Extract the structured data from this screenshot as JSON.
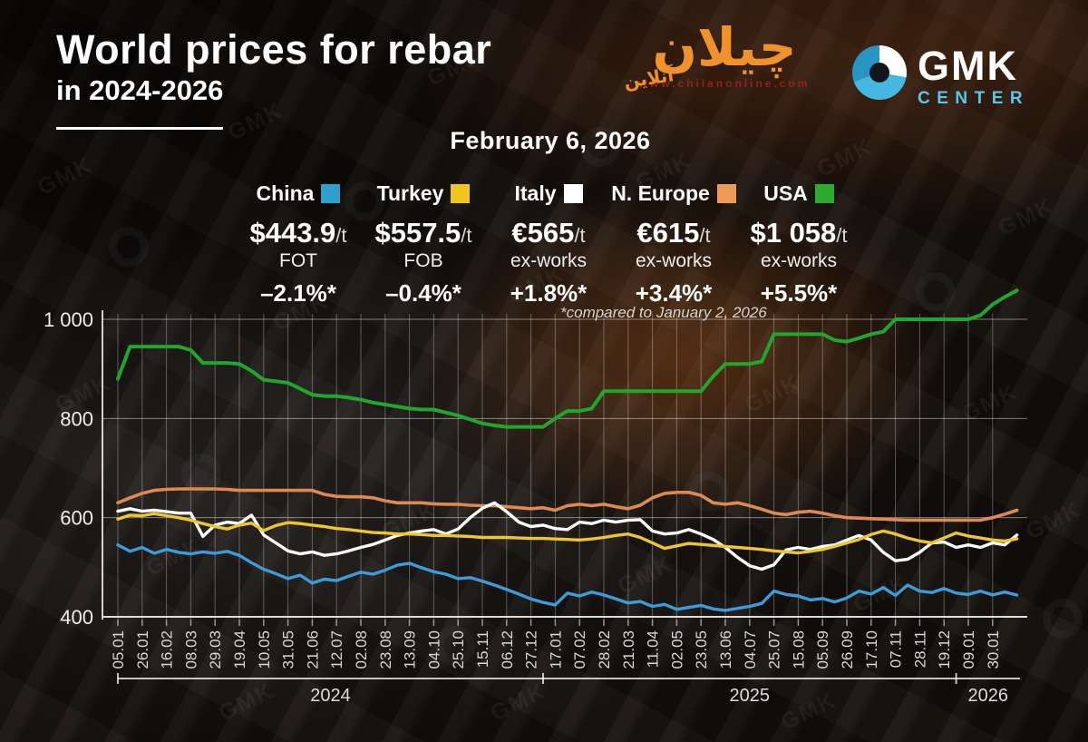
{
  "title": {
    "line1": "World prices for rebar",
    "line2": "in 2024-2026"
  },
  "date_label": "February 6, 2026",
  "footnote": "*compared to January 2, 2026",
  "watermark": {
    "text": "GMK"
  },
  "logos": {
    "gmk": {
      "name": "GMK",
      "subname": "CENTER"
    },
    "chilan": {
      "main": "چیلان",
      "sub": "آنلاین",
      "url": "www.chilanonline.com"
    }
  },
  "legend": [
    {
      "country": "China",
      "color": "#2f9fd0",
      "value": "$443.9",
      "unit": "/t",
      "basis": "FOT",
      "change": "–2.1%*"
    },
    {
      "country": "Turkey",
      "color": "#f2c41e",
      "value": "$557.5",
      "unit": "/t",
      "basis": "FOB",
      "change": "–0.4%*"
    },
    {
      "country": "Italy",
      "color": "#ffffff",
      "value": "€565",
      "unit": "/t",
      "basis": "ex-works",
      "change": "+1.8%*"
    },
    {
      "country": "N. Europe",
      "color": "#ef9a57",
      "value": "€615",
      "unit": "/t",
      "basis": "ex-works",
      "change": "+3.4%*"
    },
    {
      "country": "USA",
      "color": "#2cab2c",
      "value": "$1 058",
      "unit": "/t",
      "basis": "ex-works",
      "change": "+5.5%*"
    }
  ],
  "chart_data": {
    "type": "line",
    "title": "World prices for rebar in 2024-2026, $/t or €/t",
    "grid": true,
    "ylim": [
      400,
      1070
    ],
    "y_axis": {
      "ticks": [
        400,
        600,
        800,
        1000
      ],
      "labels": [
        "400",
        "600",
        "800",
        "1 000"
      ]
    },
    "x_tick_labels": [
      "05.01",
      "26.01",
      "16.02",
      "08.03",
      "29.03",
      "19.04",
      "10.05",
      "31.05",
      "21.06",
      "12.07",
      "02.08",
      "23.08",
      "13.09",
      "04.10",
      "25.10",
      "15.11",
      "06.12",
      "27.12",
      "17.01",
      "07.02",
      "28.02",
      "21.03",
      "11.04",
      "02.05",
      "23.05",
      "13.06",
      "04.07",
      "25.07",
      "15.08",
      "05.09",
      "26.09",
      "17.10",
      "07.11",
      "28.11",
      "19.12",
      "09.01",
      "30.01"
    ],
    "points_per_tick_interval": 2,
    "years": [
      {
        "label": "2024",
        "from_tick": 0,
        "to_tick": 17
      },
      {
        "label": "2025",
        "from_tick": 18,
        "to_tick": 34
      },
      {
        "label": "2026",
        "from_tick": 35,
        "to_tick": 36
      }
    ],
    "series": [
      {
        "name": "N. Europe",
        "color": "#dd8a52",
        "width": 3.6,
        "values": [
          630,
          640,
          649,
          655,
          657,
          658,
          658,
          658,
          658,
          657,
          655,
          655,
          655,
          655,
          655,
          655,
          655,
          647,
          643,
          642,
          642,
          640,
          634,
          630,
          630,
          630,
          628,
          627,
          627,
          625,
          624,
          624,
          622,
          620,
          618,
          620,
          615,
          624,
          627,
          624,
          627,
          622,
          618,
          625,
          640,
          649,
          651,
          651,
          645,
          630,
          627,
          630,
          624,
          617,
          609,
          606,
          611,
          613,
          609,
          604,
          600,
          599,
          598,
          597,
          596,
          595,
          595,
          595,
          595,
          595,
          595,
          595,
          600,
          607,
          615
        ]
      },
      {
        "name": "Italy",
        "color": "#ffffff",
        "width": 3.4,
        "values": [
          613,
          618,
          613,
          615,
          612,
          609,
          609,
          562,
          585,
          591,
          588,
          605,
          565,
          549,
          533,
          527,
          531,
          524,
          527,
          533,
          540,
          546,
          555,
          564,
          569,
          573,
          576,
          567,
          577,
          600,
          619,
          630,
          612,
          591,
          582,
          585,
          578,
          576,
          591,
          588,
          595,
          591,
          595,
          596,
          573,
          567,
          569,
          576,
          567,
          556,
          540,
          520,
          503,
          496,
          505,
          535,
          540,
          536,
          542,
          545,
          555,
          564,
          555,
          530,
          513,
          516,
          530,
          549,
          551,
          540,
          545,
          540,
          549,
          545,
          565
        ]
      },
      {
        "name": "Turkey",
        "color": "#eec62f",
        "width": 3.4,
        "values": [
          597,
          605,
          604,
          608,
          604,
          600,
          595,
          588,
          582,
          577,
          585,
          589,
          574,
          584,
          590,
          588,
          585,
          582,
          578,
          576,
          573,
          570,
          569,
          567,
          567,
          566,
          564,
          564,
          563,
          562,
          560,
          560,
          560,
          559,
          558,
          558,
          557,
          556,
          555,
          557,
          560,
          564,
          567,
          560,
          549,
          538,
          543,
          548,
          546,
          544,
          542,
          540,
          538,
          536,
          533,
          531,
          529,
          532,
          536,
          542,
          549,
          556,
          566,
          573,
          567,
          559,
          553,
          549,
          559,
          569,
          563,
          559,
          555,
          553,
          557.5
        ]
      },
      {
        "name": "China",
        "color": "#3b9cd9",
        "width": 3.4,
        "values": [
          545,
          532,
          540,
          528,
          536,
          530,
          527,
          531,
          528,
          532,
          524,
          509,
          496,
          487,
          477,
          484,
          468,
          476,
          473,
          482,
          490,
          486,
          494,
          504,
          508,
          499,
          491,
          486,
          477,
          479,
          472,
          464,
          455,
          446,
          436,
          429,
          424,
          448,
          442,
          450,
          444,
          436,
          428,
          431,
          421,
          425,
          415,
          419,
          423,
          416,
          413,
          417,
          421,
          427,
          452,
          445,
          442,
          434,
          437,
          430,
          438,
          452,
          446,
          459,
          443,
          464,
          452,
          449,
          457,
          448,
          445,
          452,
          444,
          450,
          443.9
        ]
      },
      {
        "name": "USA",
        "color": "#22a52c",
        "width": 4,
        "values": [
          880,
          945,
          945,
          945,
          945,
          945,
          938,
          912,
          912,
          912,
          910,
          896,
          878,
          875,
          872,
          860,
          848,
          845,
          845,
          842,
          838,
          832,
          828,
          824,
          820,
          818,
          818,
          812,
          806,
          798,
          790,
          786,
          783,
          783,
          783,
          783,
          800,
          815,
          815,
          820,
          855,
          855,
          855,
          855,
          855,
          855,
          855,
          855,
          855,
          885,
          910,
          910,
          910,
          915,
          970,
          970,
          970,
          970,
          970,
          958,
          955,
          962,
          970,
          975,
          1000,
          1000,
          1000,
          1000,
          1000,
          1000,
          1000,
          1008,
          1030,
          1045,
          1058
        ]
      }
    ]
  }
}
